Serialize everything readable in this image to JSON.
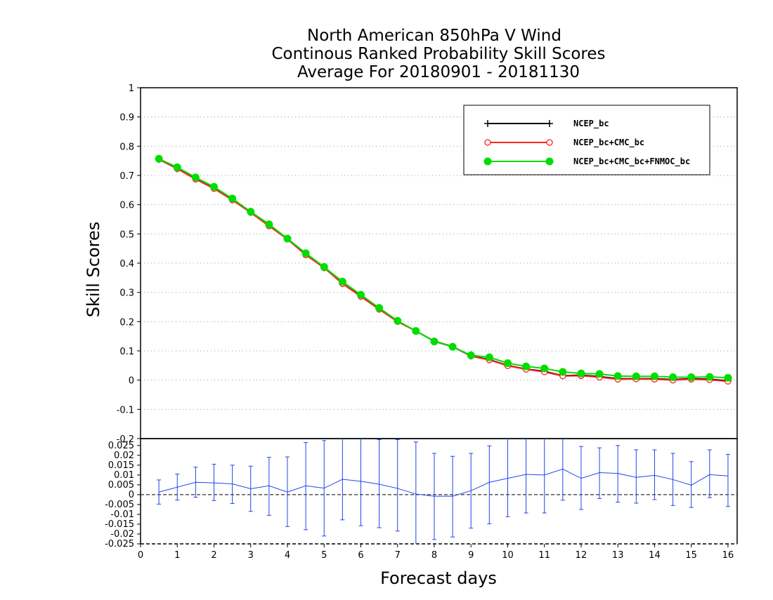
{
  "title_lines": [
    "North American 850hPa V Wind",
    "Continous Ranked Probability Skill Scores",
    "Average For 20180901 - 20181130"
  ],
  "chart_data": [
    {
      "type": "line",
      "ylabel": "Skill Scores",
      "xlim": [
        0,
        16.25
      ],
      "ylim": [
        -0.2,
        1
      ],
      "y_ticks": [
        -0.2,
        -0.1,
        0,
        0.1,
        0.2,
        0.3,
        0.4,
        0.5,
        0.6,
        0.7,
        0.8,
        0.9,
        1
      ],
      "y_tick_labels": [
        "-0.2",
        "-0.1",
        "0",
        "0.1",
        "0.2",
        "0.3",
        "0.4",
        "0.5",
        "0.6",
        "0.7",
        "0.8",
        "0.9",
        "1"
      ],
      "grid": "horizontal dotted",
      "legend_position": "top-right",
      "x": [
        0.5,
        1,
        1.5,
        2,
        2.5,
        3,
        3.5,
        4,
        4.5,
        5,
        5.5,
        6,
        6.5,
        7,
        7.5,
        8,
        8.5,
        9,
        9.5,
        10,
        10.5,
        11,
        11.5,
        12,
        12.5,
        13,
        13.5,
        14,
        14.5,
        15,
        15.5,
        16
      ],
      "series": [
        {
          "name": "NCEP_bc",
          "color": "#000000",
          "marker": "plus",
          "values": [
            0.755,
            0.723,
            0.688,
            0.656,
            0.617,
            0.574,
            0.528,
            0.483,
            0.43,
            0.385,
            0.33,
            0.287,
            0.243,
            0.201,
            0.168,
            0.133,
            0.115,
            0.083,
            0.07,
            0.05,
            0.038,
            0.03,
            0.015,
            0.017,
            0.012,
            0.005,
            0.005,
            0.005,
            0.002,
            0.005,
            0.003,
            -0.002
          ]
        },
        {
          "name": "NCEP_bc+CMC_bc",
          "color": "#ff2020",
          "marker": "open-circle",
          "values": [
            0.755,
            0.723,
            0.687,
            0.655,
            0.616,
            0.573,
            0.527,
            0.482,
            0.428,
            0.384,
            0.33,
            0.286,
            0.242,
            0.2,
            0.168,
            0.133,
            0.114,
            0.082,
            0.069,
            0.049,
            0.037,
            0.028,
            0.014,
            0.015,
            0.01,
            0.003,
            0.004,
            0.003,
            0.0,
            0.003,
            0.001,
            -0.004
          ]
        },
        {
          "name": "NCEP_bc+CMC_bc+FNMOC_bc",
          "color": "#00dd00",
          "marker": "filled-circle",
          "values": [
            0.757,
            0.728,
            0.693,
            0.661,
            0.621,
            0.576,
            0.533,
            0.484,
            0.434,
            0.387,
            0.337,
            0.292,
            0.247,
            0.203,
            0.168,
            0.132,
            0.114,
            0.085,
            0.078,
            0.058,
            0.047,
            0.04,
            0.028,
            0.023,
            0.021,
            0.014,
            0.013,
            0.013,
            0.01,
            0.01,
            0.011,
            0.008
          ]
        }
      ]
    },
    {
      "type": "line",
      "xlabel": "Forecast days",
      "xlim": [
        0,
        16.25
      ],
      "ylim": [
        -0.025,
        0.03
      ],
      "x_ticks": [
        0,
        1,
        2,
        3,
        4,
        5,
        6,
        7,
        8,
        9,
        10,
        11,
        12,
        13,
        14,
        15,
        16
      ],
      "x_tick_labels": [
        "0",
        "1",
        "2",
        "3",
        "4",
        "5",
        "6",
        "7",
        "8",
        "9",
        "10",
        "11",
        "12",
        "13",
        "14",
        "15",
        "16"
      ],
      "y_ticks": [
        -0.025,
        -0.02,
        -0.015,
        -0.01,
        -0.005,
        0,
        0.005,
        0.01,
        0.015,
        0.02,
        0.025
      ],
      "y_tick_labels": [
        "-0.025",
        "-0.02",
        "-0.015",
        "-0.01",
        "-0.005",
        "0",
        "0.005",
        "0.01",
        "0.015",
        "0.02",
        "0.025"
      ],
      "zero_line": "dashed",
      "x": [
        0.5,
        1,
        1.5,
        2,
        2.5,
        3,
        3.5,
        4,
        4.5,
        5,
        5.5,
        6,
        6.5,
        7,
        7.5,
        8,
        8.5,
        9,
        9.5,
        10,
        10.5,
        11,
        11.5,
        12,
        12.5,
        13,
        13.5,
        14,
        14.5,
        15,
        15.5,
        16
      ],
      "series": [
        {
          "color": "#2244ee",
          "values": [
            0.0013,
            0.0038,
            0.0063,
            0.006,
            0.0055,
            0.003,
            0.0045,
            0.0013,
            0.0045,
            0.0033,
            0.0078,
            0.0068,
            0.0053,
            0.0032,
            0.0003,
            -0.0008,
            -0.0008,
            0.002,
            0.0063,
            0.0083,
            0.0103,
            0.01,
            0.013,
            0.0083,
            0.0112,
            0.0108,
            0.0088,
            0.0098,
            0.0077,
            0.0048,
            0.0102,
            0.0095
          ],
          "error_upper": [
            0.0075,
            0.0105,
            0.014,
            0.0155,
            0.015,
            0.0145,
            0.019,
            0.0192,
            0.0265,
            0.0275,
            0.0285,
            0.029,
            0.028,
            0.028,
            0.0268,
            0.021,
            0.0195,
            0.021,
            0.0248,
            0.029,
            0.029,
            0.0292,
            0.03,
            0.0245,
            0.0238,
            0.025,
            0.0228,
            0.0228,
            0.021,
            0.0168,
            0.0228,
            0.0205
          ],
          "error_lower": [
            -0.0048,
            -0.0028,
            -0.0013,
            -0.003,
            -0.0045,
            -0.0085,
            -0.0105,
            -0.0162,
            -0.0178,
            -0.021,
            -0.0128,
            -0.0158,
            -0.0168,
            -0.0185,
            -0.026,
            -0.0228,
            -0.0215,
            -0.017,
            -0.0148,
            -0.0112,
            -0.0093,
            -0.0093,
            -0.0028,
            -0.0075,
            -0.002,
            -0.0038,
            -0.0043,
            -0.0025,
            -0.0055,
            -0.0065,
            -0.0015,
            -0.006
          ]
        }
      ]
    }
  ]
}
